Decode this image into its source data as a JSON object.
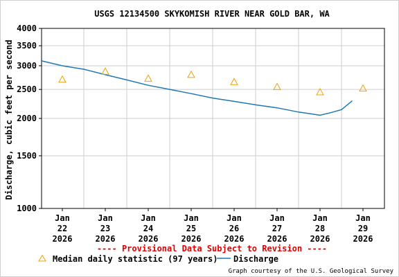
{
  "chart_data": {
    "type": "line",
    "title": "USGS 12134500 SKYKOMISH RIVER NEAR GOLD BAR, WA",
    "ylabel": "Discharge, cubic feet per second",
    "xlabel": "",
    "y_scale": "log",
    "ylim": [
      1000,
      4000
    ],
    "y_ticks": [
      1000,
      1500,
      2000,
      2500,
      3000,
      3500,
      4000
    ],
    "x_ticks": [
      {
        "label": [
          "Jan",
          "22",
          "2026"
        ],
        "day": 22
      },
      {
        "label": [
          "Jan",
          "23",
          "2026"
        ],
        "day": 23
      },
      {
        "label": [
          "Jan",
          "24",
          "2026"
        ],
        "day": 24
      },
      {
        "label": [
          "Jan",
          "25",
          "2026"
        ],
        "day": 25
      },
      {
        "label": [
          "Jan",
          "26",
          "2026"
        ],
        "day": 26
      },
      {
        "label": [
          "Jan",
          "27",
          "2026"
        ],
        "day": 27
      },
      {
        "label": [
          "Jan",
          "28",
          "2026"
        ],
        "day": 28
      },
      {
        "label": [
          "Jan",
          "29",
          "2026"
        ],
        "day": 29
      }
    ],
    "grid": true,
    "series": [
      {
        "name": "Median daily statistic (97 years)",
        "marker": "triangle",
        "color": "#f0a000",
        "points": [
          {
            "date": "2026-01-22",
            "value": 2700
          },
          {
            "date": "2026-01-23",
            "value": 2870
          },
          {
            "date": "2026-01-24",
            "value": 2720
          },
          {
            "date": "2026-01-25",
            "value": 2800
          },
          {
            "date": "2026-01-26",
            "value": 2650
          },
          {
            "date": "2026-01-27",
            "value": 2550
          },
          {
            "date": "2026-01-28",
            "value": 2450
          },
          {
            "date": "2026-01-29",
            "value": 2520
          }
        ]
      },
      {
        "name": "Discharge",
        "color": "#1f77b4",
        "points": [
          {
            "date": "2026-01-21 12:00",
            "value": 3120
          },
          {
            "date": "2026-01-22 00:00",
            "value": 3000
          },
          {
            "date": "2026-01-22 12:00",
            "value": 2920
          },
          {
            "date": "2026-01-23 00:00",
            "value": 2800
          },
          {
            "date": "2026-01-23 12:00",
            "value": 2690
          },
          {
            "date": "2026-01-24 00:00",
            "value": 2580
          },
          {
            "date": "2026-01-24 12:00",
            "value": 2500
          },
          {
            "date": "2026-01-25 00:00",
            "value": 2420
          },
          {
            "date": "2026-01-25 12:00",
            "value": 2340
          },
          {
            "date": "2026-01-26 00:00",
            "value": 2280
          },
          {
            "date": "2026-01-26 12:00",
            "value": 2220
          },
          {
            "date": "2026-01-27 00:00",
            "value": 2170
          },
          {
            "date": "2026-01-27 12:00",
            "value": 2100
          },
          {
            "date": "2026-01-28 00:00",
            "value": 2050
          },
          {
            "date": "2026-01-28 06:00",
            "value": 2090
          },
          {
            "date": "2026-01-28 12:00",
            "value": 2140
          },
          {
            "date": "2026-01-28 18:00",
            "value": 2290
          }
        ]
      }
    ],
    "legend": {
      "placement": "bottom-left",
      "items": [
        "Median daily statistic (97 years)",
        "Discharge"
      ]
    },
    "annotation": "---- Provisional Data Subject to Revision ----",
    "annotation_color": "#e00000",
    "credit": "Graph courtesy of the U.S. Geological Survey"
  }
}
